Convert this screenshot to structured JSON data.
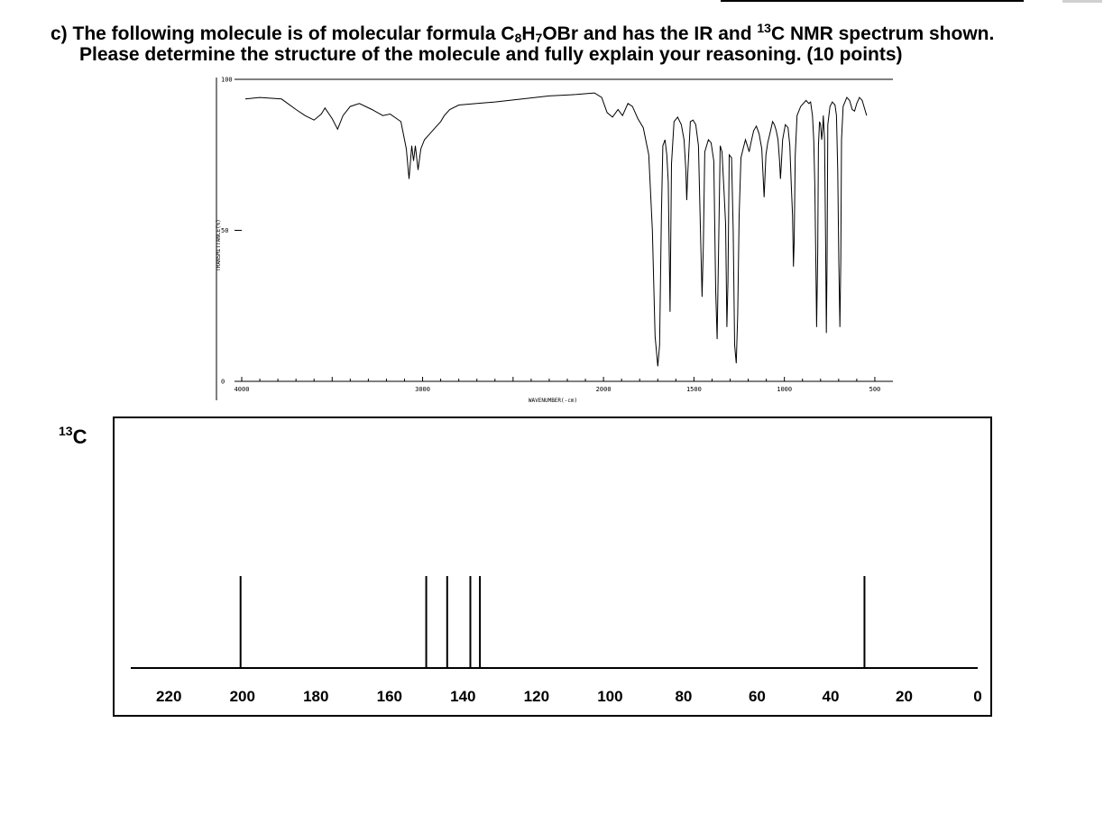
{
  "question": {
    "line1_a": "c) The following molecule is of molecular formula C",
    "sub1": "8",
    "line1_b": "H",
    "sub2": "7",
    "line1_c": "OBr and has the IR and ",
    "sup1": "13",
    "line1_d": "C NMR spectrum shown.",
    "line2": "Please determine the structure of the molecule and fully explain your reasoning. (10 points)"
  },
  "c13_label": {
    "sup": "13",
    "text": "C"
  },
  "ir_chart": {
    "type": "line",
    "xlabel": "WAVENUMBER(-cm)",
    "ylabel": "TRANSMITTANCE(%)",
    "xlim": [
      4000,
      400
    ],
    "ylim": [
      0,
      100
    ],
    "xticks": [
      {
        "value": 4000,
        "label": "4000"
      },
      {
        "value": 3000,
        "label": "3000"
      },
      {
        "value": 2000,
        "label": "2000"
      },
      {
        "value": 1500,
        "label": "1500"
      },
      {
        "value": 1000,
        "label": "1000"
      },
      {
        "value": 500,
        "label": "500"
      }
    ],
    "yticks": [
      {
        "value": 100,
        "label": "100"
      },
      {
        "value": 50,
        "label": "50"
      },
      {
        "value": 0,
        "label": "0"
      }
    ],
    "points": [
      [
        3980,
        93.5
      ],
      [
        3900,
        94
      ],
      [
        3780,
        93.5
      ],
      [
        3700,
        90
      ],
      [
        3650,
        88
      ],
      [
        3600,
        86.5
      ],
      [
        3560,
        88.5
      ],
      [
        3540,
        90.5
      ],
      [
        3500,
        87
      ],
      [
        3470,
        83.5
      ],
      [
        3440,
        88
      ],
      [
        3400,
        91
      ],
      [
        3350,
        92
      ],
      [
        3280,
        90
      ],
      [
        3220,
        88
      ],
      [
        3180,
        88.5
      ],
      [
        3120,
        86
      ],
      [
        3090,
        77
      ],
      [
        3075,
        67
      ],
      [
        3060,
        78
      ],
      [
        3050,
        73
      ],
      [
        3040,
        78
      ],
      [
        3025,
        70
      ],
      [
        3010,
        77
      ],
      [
        2990,
        80
      ],
      [
        2960,
        82
      ],
      [
        2930,
        84
      ],
      [
        2900,
        86
      ],
      [
        2880,
        88
      ],
      [
        2850,
        90
      ],
      [
        2800,
        91.5
      ],
      [
        2700,
        92
      ],
      [
        2600,
        92.5
      ],
      [
        2450,
        93.5
      ],
      [
        2300,
        94.5
      ],
      [
        2150,
        95
      ],
      [
        2050,
        95.5
      ],
      [
        2010,
        94
      ],
      [
        1980,
        89
      ],
      [
        1950,
        87.5
      ],
      [
        1920,
        90
      ],
      [
        1895,
        88
      ],
      [
        1865,
        92
      ],
      [
        1840,
        91
      ],
      [
        1810,
        87
      ],
      [
        1780,
        84
      ],
      [
        1750,
        75
      ],
      [
        1730,
        50
      ],
      [
        1715,
        15
      ],
      [
        1700,
        5
      ],
      [
        1690,
        12
      ],
      [
        1680,
        55
      ],
      [
        1672,
        78
      ],
      [
        1660,
        80
      ],
      [
        1650,
        75
      ],
      [
        1642,
        66
      ],
      [
        1632,
        23
      ],
      [
        1624,
        72
      ],
      [
        1610,
        86
      ],
      [
        1590,
        87.5
      ],
      [
        1570,
        85
      ],
      [
        1555,
        80
      ],
      [
        1545,
        70
      ],
      [
        1540,
        60
      ],
      [
        1535,
        68
      ],
      [
        1520,
        86
      ],
      [
        1505,
        86.5
      ],
      [
        1490,
        85
      ],
      [
        1475,
        78
      ],
      [
        1462,
        45
      ],
      [
        1455,
        28
      ],
      [
        1448,
        45
      ],
      [
        1440,
        76
      ],
      [
        1420,
        80
      ],
      [
        1405,
        79
      ],
      [
        1390,
        73
      ],
      [
        1380,
        30
      ],
      [
        1372,
        14
      ],
      [
        1365,
        40
      ],
      [
        1355,
        78
      ],
      [
        1345,
        76
      ],
      [
        1333,
        62
      ],
      [
        1325,
        52
      ],
      [
        1318,
        18
      ],
      [
        1312,
        33
      ],
      [
        1305,
        75
      ],
      [
        1292,
        74
      ],
      [
        1283,
        50
      ],
      [
        1275,
        12
      ],
      [
        1266,
        6
      ],
      [
        1258,
        22
      ],
      [
        1250,
        55
      ],
      [
        1240,
        74
      ],
      [
        1228,
        77
      ],
      [
        1215,
        80
      ],
      [
        1205,
        78
      ],
      [
        1195,
        76
      ],
      [
        1185,
        79
      ],
      [
        1170,
        83
      ],
      [
        1155,
        84.5
      ],
      [
        1140,
        82
      ],
      [
        1125,
        77
      ],
      [
        1112,
        61
      ],
      [
        1102,
        75
      ],
      [
        1092,
        79
      ],
      [
        1080,
        82
      ],
      [
        1065,
        86
      ],
      [
        1055,
        85
      ],
      [
        1045,
        83
      ],
      [
        1035,
        80
      ],
      [
        1027,
        73
      ],
      [
        1022,
        67
      ],
      [
        1017,
        72
      ],
      [
        1010,
        80
      ],
      [
        995,
        85
      ],
      [
        980,
        84
      ],
      [
        970,
        78
      ],
      [
        962,
        65
      ],
      [
        955,
        55
      ],
      [
        950,
        38
      ],
      [
        946,
        46
      ],
      [
        940,
        75
      ],
      [
        930,
        88
      ],
      [
        910,
        91
      ],
      [
        880,
        93
      ],
      [
        865,
        92
      ],
      [
        855,
        92.5
      ],
      [
        845,
        88
      ],
      [
        838,
        80
      ],
      [
        832,
        65
      ],
      [
        826,
        38
      ],
      [
        822,
        18
      ],
      [
        816,
        42
      ],
      [
        812,
        78
      ],
      [
        806,
        86
      ],
      [
        800,
        85
      ],
      [
        794,
        80
      ],
      [
        788,
        84
      ],
      [
        785,
        88
      ],
      [
        778,
        80
      ],
      [
        772,
        45
      ],
      [
        768,
        16
      ],
      [
        764,
        40
      ],
      [
        760,
        85
      ],
      [
        748,
        91
      ],
      [
        735,
        92.5
      ],
      [
        720,
        91.5
      ],
      [
        712,
        88
      ],
      [
        705,
        70
      ],
      [
        699,
        40
      ],
      [
        693,
        18
      ],
      [
        688,
        40
      ],
      [
        684,
        80
      ],
      [
        675,
        91
      ],
      [
        655,
        94
      ],
      [
        640,
        93
      ],
      [
        625,
        90
      ],
      [
        612,
        89.5
      ],
      [
        600,
        92
      ],
      [
        585,
        94
      ],
      [
        570,
        93
      ],
      [
        555,
        90
      ],
      [
        545,
        88
      ]
    ]
  },
  "nmr_chart": {
    "type": "bar",
    "xlim": [
      223,
      0
    ],
    "xticks": [
      {
        "value": 220,
        "label": "220"
      },
      {
        "value": 200,
        "label": "200"
      },
      {
        "value": 180,
        "label": "180"
      },
      {
        "value": 160,
        "label": "160"
      },
      {
        "value": 140,
        "label": "140"
      },
      {
        "value": 120,
        "label": "120"
      },
      {
        "value": 100,
        "label": "100"
      },
      {
        "value": 80,
        "label": "80"
      },
      {
        "value": 60,
        "label": "60"
      },
      {
        "value": 40,
        "label": "40"
      },
      {
        "value": 20,
        "label": "20"
      },
      {
        "value": 0,
        "label": "0"
      }
    ],
    "peaks": [
      200.5,
      150.0,
      144.3,
      138.0,
      135.4,
      30.8
    ]
  }
}
